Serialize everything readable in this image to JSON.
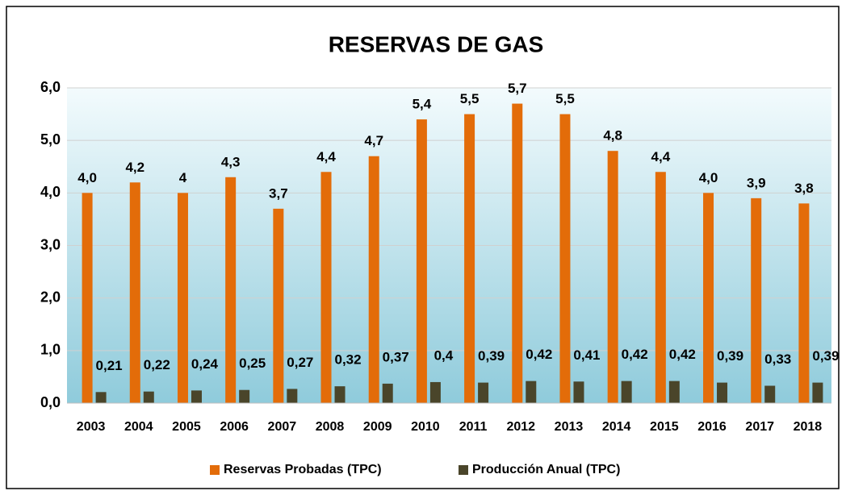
{
  "chart_data": {
    "type": "bar",
    "title": "RESERVAS DE GAS",
    "categories": [
      "2003",
      "2004",
      "2005",
      "2006",
      "2007",
      "2008",
      "2009",
      "2010",
      "2011",
      "2012",
      "2013",
      "2014",
      "2015",
      "2016",
      "2017",
      "2018"
    ],
    "series": [
      {
        "name": "Reservas Probadas (TPC)",
        "color": "#e36c09",
        "values": [
          4.0,
          4.2,
          4,
          4.3,
          3.7,
          4.4,
          4.7,
          5.4,
          5.5,
          5.7,
          5.5,
          4.8,
          4.4,
          4.0,
          3.9,
          3.8
        ],
        "value_labels": [
          "4,0",
          "4,2",
          "4",
          "4,3",
          "3,7",
          "4,4",
          "4,7",
          "5,4",
          "5,5",
          "5,7",
          "5,5",
          "4,8",
          "4,4",
          "4,0",
          "3,9",
          "3,8"
        ]
      },
      {
        "name": "Producción Anual (TPC)",
        "color": "#4a452a",
        "values": [
          0.21,
          0.22,
          0.24,
          0.25,
          0.27,
          0.32,
          0.37,
          0.4,
          0.39,
          0.42,
          0.41,
          0.42,
          0.42,
          0.39,
          0.33,
          0.39
        ],
        "value_labels": [
          "0,21",
          "0,22",
          "0,24",
          "0,25",
          "0,27",
          "0,32",
          "0,37",
          "0,4",
          "0,39",
          "0,42",
          "0,41",
          "0,42",
          "0,42",
          "0,39",
          "0,33",
          "0,39"
        ]
      }
    ],
    "ylim": [
      0,
      6
    ],
    "yticks": [
      {
        "value": 0,
        "label": "0,0"
      },
      {
        "value": 1,
        "label": "1,0"
      },
      {
        "value": 2,
        "label": "2,0"
      },
      {
        "value": 3,
        "label": "3,0"
      },
      {
        "value": 4,
        "label": "4,0"
      },
      {
        "value": 5,
        "label": "5,0"
      },
      {
        "value": 6,
        "label": "6,0"
      }
    ],
    "grid": true,
    "legend": "bottom"
  }
}
